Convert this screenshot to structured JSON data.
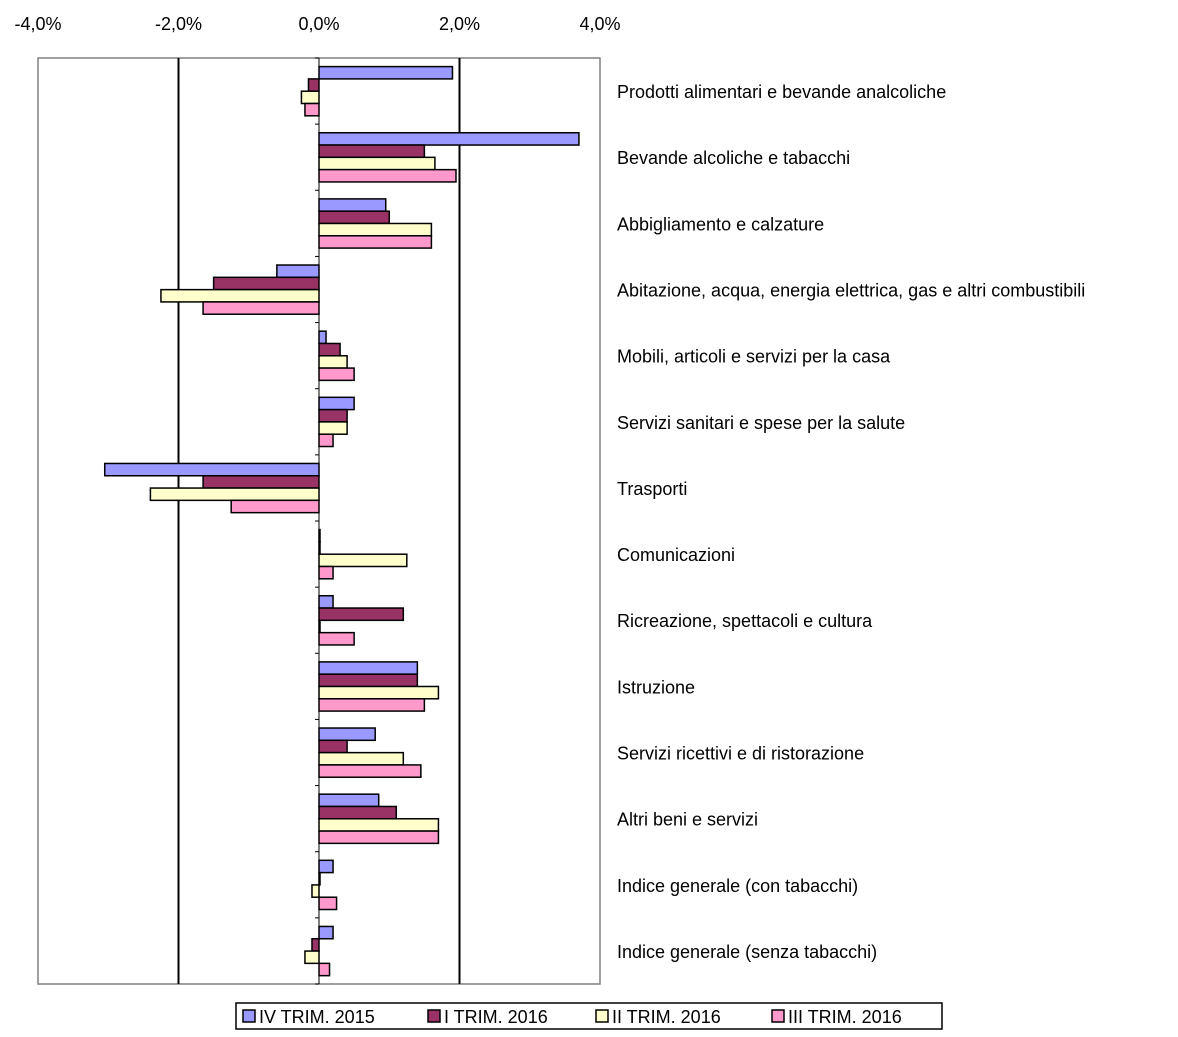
{
  "chart_data": {
    "type": "bar",
    "orientation": "horizontal",
    "title": "",
    "xlabel": "",
    "ylabel": "",
    "xlim": [
      -4.0,
      4.0
    ],
    "x_ticks": [
      -4.0,
      -2.0,
      0.0,
      2.0,
      4.0
    ],
    "x_tick_labels": [
      "-4,0%",
      "-2,0%",
      "0,0%",
      "2,0%",
      "4,0%"
    ],
    "x_axis_position": "top",
    "grid": "vertical gridlines at -2,0% and 2,0%",
    "legend_position": "bottom",
    "categories": [
      "Prodotti alimentari e bevande analcoliche",
      "Bevande alcoliche e tabacchi",
      "Abbigliamento e calzature",
      "Abitazione, acqua, energia elettrica, gas e altri combustibili",
      "Mobili, articoli e servizi per la casa",
      "Servizi sanitari e spese per la salute",
      "Trasporti",
      "Comunicazioni",
      "Ricreazione, spettacoli e cultura",
      "Istruzione",
      "Servizi ricettivi e di ristorazione",
      "Altri beni e servizi",
      "Indice generale (con tabacchi)",
      "Indice generale (senza tabacchi)"
    ],
    "series": [
      {
        "name": "IV TRIM. 2015",
        "color": "#9999ff",
        "values": [
          1.9,
          3.7,
          0.95,
          -0.6,
          0.1,
          0.5,
          -3.05,
          0.0,
          0.2,
          1.4,
          0.8,
          0.85,
          0.2,
          0.2
        ]
      },
      {
        "name": "I TRIM. 2016",
        "color": "#993366",
        "values": [
          -0.15,
          1.5,
          1.0,
          -1.5,
          0.3,
          0.4,
          -1.65,
          0.0,
          1.2,
          1.4,
          0.4,
          1.1,
          0.0,
          -0.1
        ]
      },
      {
        "name": "II TRIM. 2016",
        "color": "#ffffcc",
        "values": [
          -0.25,
          1.65,
          1.6,
          -2.25,
          0.4,
          0.4,
          -2.4,
          1.25,
          0.0,
          1.7,
          1.2,
          1.7,
          -0.1,
          -0.2
        ]
      },
      {
        "name": "III TRIM. 2016",
        "color": "#ff99cc",
        "values": [
          -0.2,
          1.95,
          1.6,
          -1.65,
          0.5,
          0.2,
          -1.25,
          0.2,
          0.5,
          1.5,
          1.45,
          1.7,
          0.25,
          0.15
        ]
      }
    ]
  }
}
